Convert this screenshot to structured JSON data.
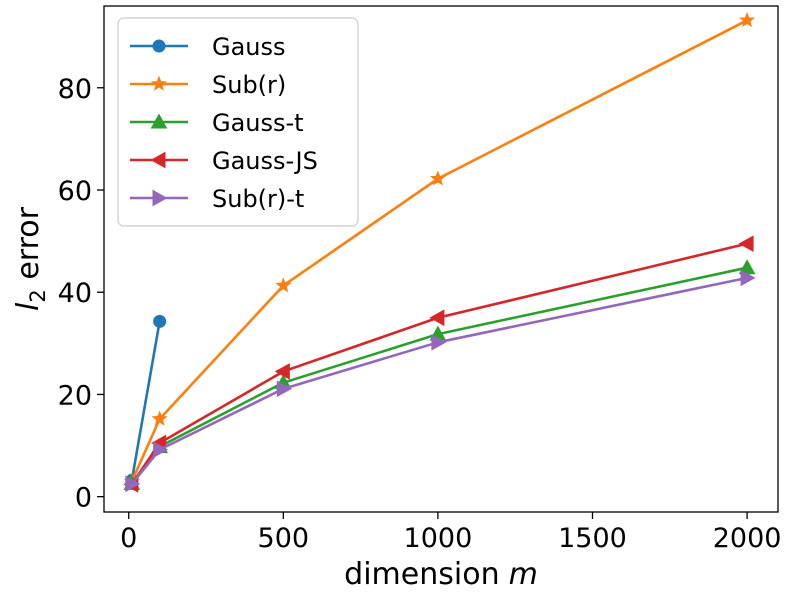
{
  "chart_data": {
    "type": "line",
    "xlabel": "dimension",
    "xlabel_var": "m",
    "ylabel_sym": "l",
    "ylabel_sub": "2",
    "ylabel_rest": " error",
    "xlim": [
      -80,
      2100
    ],
    "ylim": [
      -3,
      96
    ],
    "x_ticks": [
      0,
      500,
      1000,
      1500,
      2000
    ],
    "y_ticks": [
      0,
      20,
      40,
      60,
      80
    ],
    "grid": false,
    "legend_position": "top-left",
    "series": [
      {
        "name": "Gauss",
        "color": "#1f77b4",
        "marker": "circle",
        "x": [
          10,
          100
        ],
        "y": [
          3.2,
          34.3
        ]
      },
      {
        "name": "Sub(r)",
        "color": "#ff7f0e",
        "marker": "star",
        "x": [
          10,
          100,
          500,
          1000,
          2000
        ],
        "y": [
          3.0,
          15.2,
          41.3,
          62.2,
          93.2
        ]
      },
      {
        "name": "Gauss-t",
        "color": "#2ca02c",
        "marker": "triangle-up",
        "x": [
          10,
          100,
          500,
          1000,
          2000
        ],
        "y": [
          2.6,
          9.8,
          22.3,
          31.8,
          44.8
        ]
      },
      {
        "name": "Gauss-JS",
        "color": "#d62728",
        "marker": "triangle-left",
        "x": [
          10,
          100,
          500,
          1000,
          2000
        ],
        "y": [
          2.4,
          10.5,
          24.5,
          35.0,
          49.5
        ]
      },
      {
        "name": "Sub(r)-t",
        "color": "#9467bd",
        "marker": "triangle-right",
        "x": [
          10,
          100,
          500,
          1000,
          2000
        ],
        "y": [
          2.5,
          9.2,
          21.1,
          30.2,
          42.8
        ]
      }
    ]
  }
}
